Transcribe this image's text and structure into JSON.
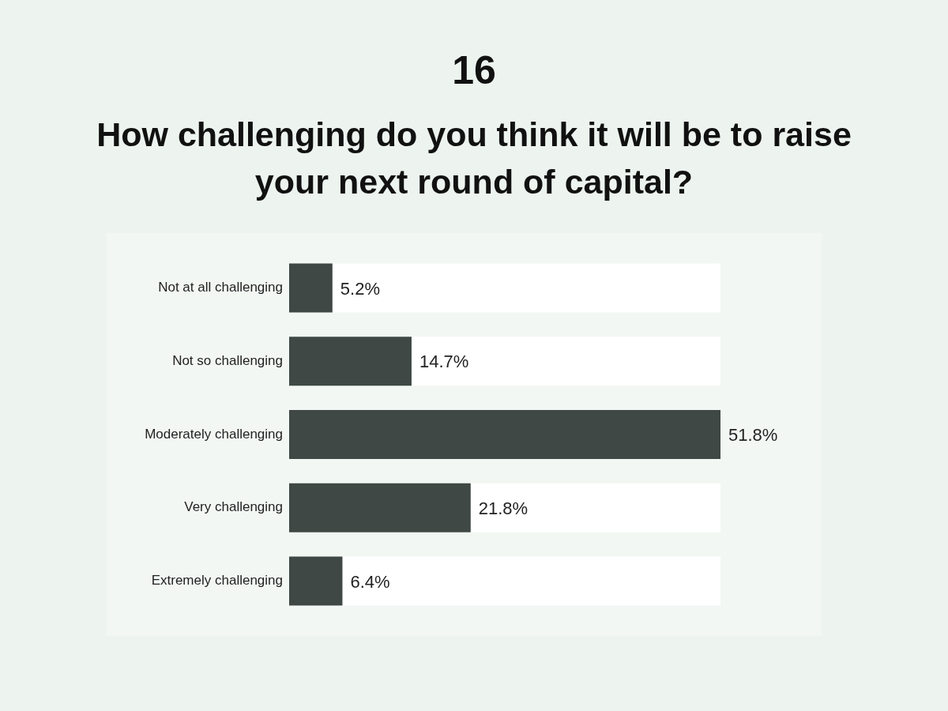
{
  "chart_data": {
    "type": "bar",
    "orientation": "horizontal",
    "title": "16",
    "subtitle": "How challenging do you think it will be to raise your next round of capital?",
    "categories": [
      "Not at all challenging",
      "Not so challenging",
      "Moderately challenging",
      "Very challenging",
      "Extremely challenging"
    ],
    "values": [
      5.2,
      14.7,
      51.8,
      21.8,
      6.4
    ],
    "value_labels": [
      "5.2%",
      "14.7%",
      "51.8%",
      "21.8%",
      "6.4%"
    ],
    "color": "#3f4844",
    "grid": false,
    "legend": false
  }
}
